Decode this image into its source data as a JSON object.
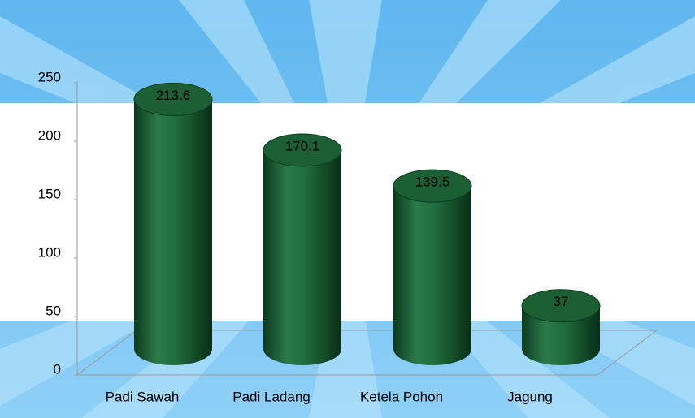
{
  "chart_data": {
    "type": "bar",
    "categories": [
      "Padi Sawah",
      "Padi Ladang",
      "Ketela Pohon",
      "Jagung"
    ],
    "values": [
      213.6,
      170.1,
      139.5,
      37
    ],
    "color": "#1f6b3c",
    "ylim": [
      0,
      250
    ],
    "yticks": [
      0,
      50,
      100,
      150,
      200,
      250
    ],
    "grid": false
  }
}
